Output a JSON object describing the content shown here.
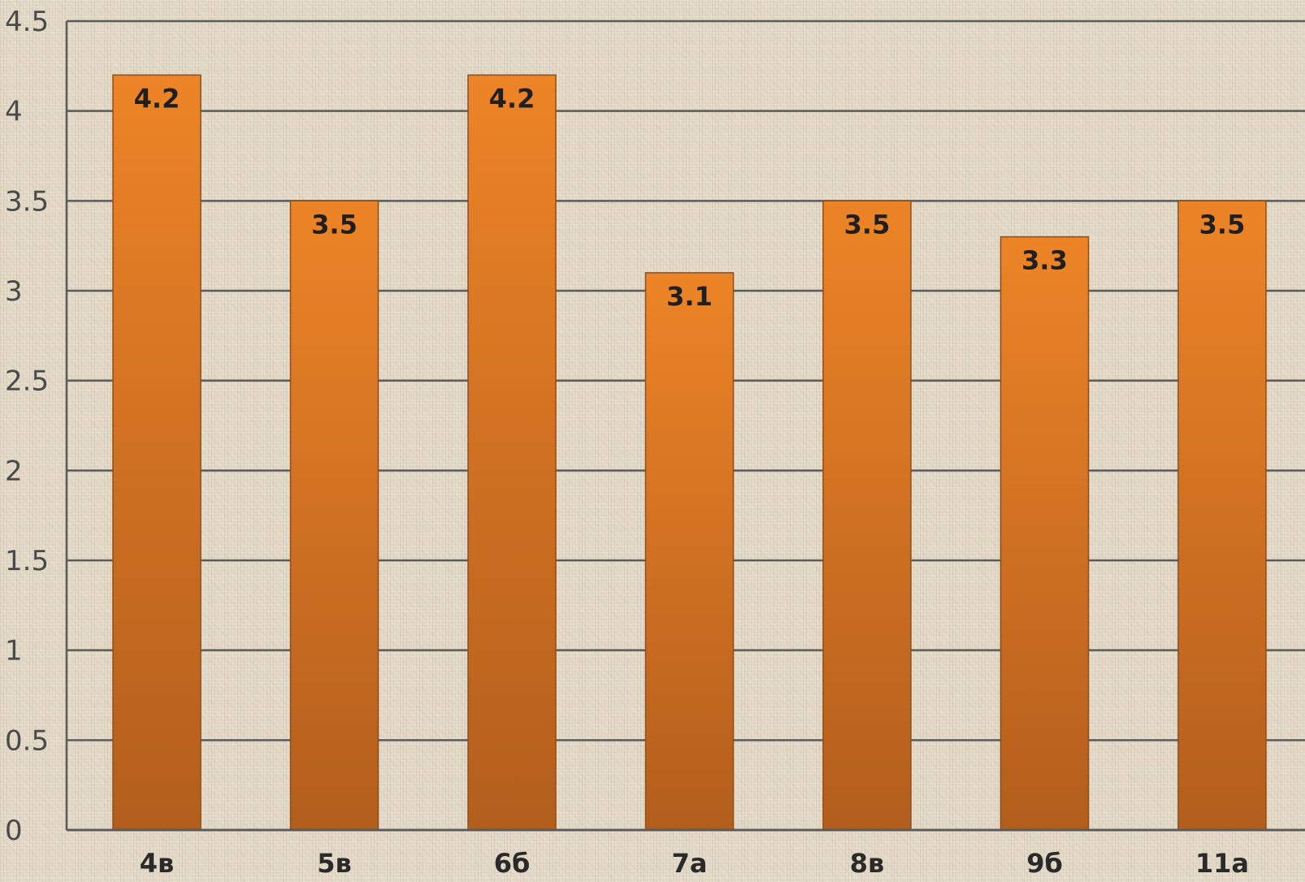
{
  "chart_data": {
    "type": "bar",
    "title": "",
    "xlabel": "",
    "ylabel": "",
    "categories": [
      "4в",
      "5в",
      "6б",
      "7а",
      "8в",
      "9б",
      "11а"
    ],
    "values": [
      4.2,
      3.5,
      4.2,
      3.1,
      3.5,
      3.3,
      3.5
    ],
    "data_labels": [
      "4.2",
      "3.5",
      "4.2",
      "3.1",
      "3.5",
      "3.3",
      "3.5"
    ],
    "ylim": [
      0,
      4.5
    ],
    "yticks": [
      "0",
      "0.5",
      "1",
      "1.5",
      "2",
      "2.5",
      "3",
      "3.5",
      "4",
      "4.5"
    ],
    "grid": true,
    "legend": "none",
    "colors": {
      "bar_top": "#ed8427",
      "bar_bottom": "#b35e1d",
      "bar_edge": "#8f4d1a",
      "gridline": "#5b5b5b",
      "axis": "#5b5b5b"
    }
  }
}
